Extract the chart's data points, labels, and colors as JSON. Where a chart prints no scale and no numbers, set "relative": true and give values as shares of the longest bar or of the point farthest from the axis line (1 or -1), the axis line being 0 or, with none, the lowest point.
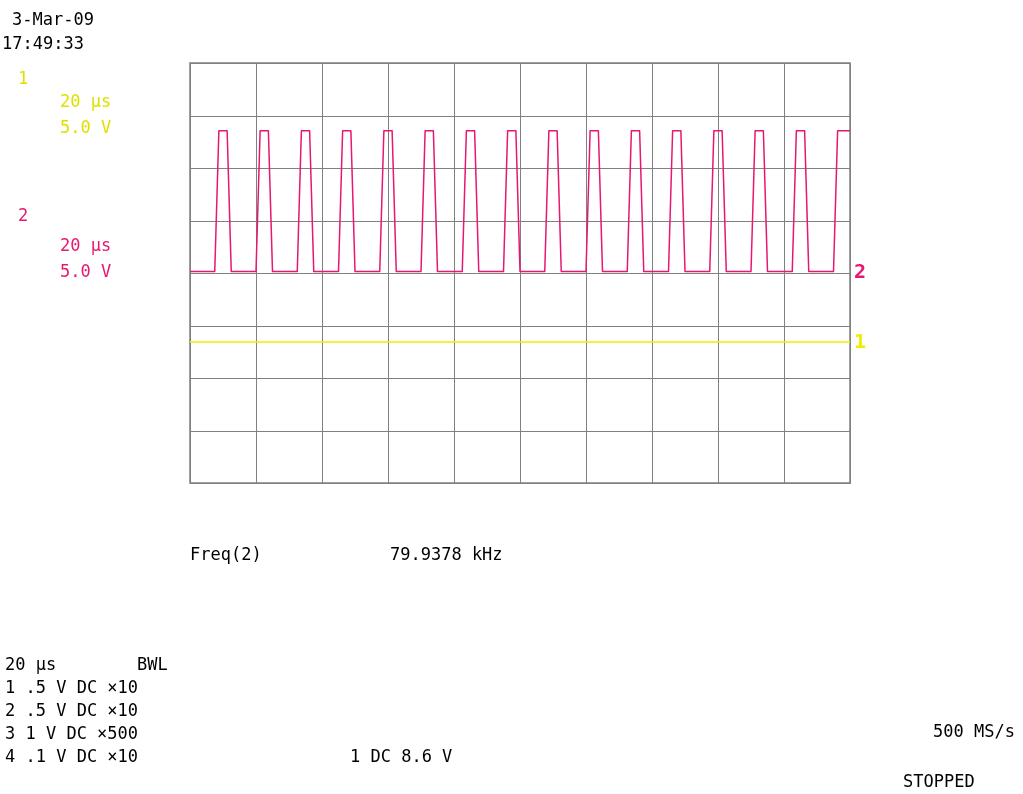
{
  "chart_data": {
    "type": "line",
    "relative": true,
    "grid": true,
    "marker": "none",
    "line_style": "solid",
    "categories": [
      null,
      null,
      null,
      null,
      null,
      null,
      null,
      null,
      null,
      null,
      null,
      null,
      null,
      null,
      null,
      null,
      null,
      null,
      null,
      null,
      null,
      null,
      null,
      null,
      null,
      null,
      null,
      null,
      null,
      null,
      null,
      null,
      null,
      null,
      null,
      null,
      null,
      null,
      null,
      null,
      null,
      null,
      null,
      null,
      null,
      null,
      null,
      null,
      null,
      null,
      null,
      null,
      null,
      null,
      null,
      null,
      null,
      null,
      null,
      null,
      null,
      null,
      null,
      null,
      null,
      null,
      null,
      null,
      null,
      null,
      null,
      null,
      null,
      null,
      null,
      null,
      null,
      null,
      null,
      null,
      null,
      null,
      null,
      null,
      null,
      null,
      null,
      null,
      null,
      null,
      null,
      null,
      null,
      null,
      null,
      null,
      null,
      null,
      null,
      null,
      null,
      null,
      null,
      null,
      null,
      null,
      null,
      null,
      null,
      null,
      null,
      null,
      null,
      null,
      null,
      null,
      null,
      null,
      null,
      null,
      null,
      null,
      null,
      null,
      null,
      null,
      null,
      null,
      null,
      null,
      null,
      null,
      null,
      null,
      null,
      null,
      null,
      null,
      null,
      null,
      null,
      null,
      null,
      null,
      null,
      null,
      null,
      null,
      null,
      null,
      null,
      null,
      null,
      null,
      null,
      null,
      null,
      null,
      null,
      null,
      null
    ],
    "series": [
      {
        "name": "2",
        "color": "#e8176f",
        "values": [
          0.6,
          0.6,
          0.6,
          0.6,
          0.6,
          0.6,
          0.6,
          1,
          1,
          1,
          0.6,
          0.6,
          0.6,
          0.6,
          0.6,
          0.6,
          0.6,
          1,
          1,
          1,
          0.6,
          0.6,
          0.6,
          0.6,
          0.6,
          0.6,
          0.6,
          1,
          1,
          1,
          0.6,
          0.6,
          0.6,
          0.6,
          0.6,
          0.6,
          0.6,
          1,
          1,
          1,
          0.6,
          0.6,
          0.6,
          0.6,
          0.6,
          0.6,
          0.6,
          1,
          1,
          1,
          0.6,
          0.6,
          0.6,
          0.6,
          0.6,
          0.6,
          0.6,
          1,
          1,
          1,
          0.6,
          0.6,
          0.6,
          0.6,
          0.6,
          0.6,
          0.6,
          1,
          1,
          1,
          0.6,
          0.6,
          0.6,
          0.6,
          0.6,
          0.6,
          0.6,
          1,
          1,
          1,
          0.6,
          0.6,
          0.6,
          0.6,
          0.6,
          0.6,
          0.6,
          1,
          1,
          1,
          0.6,
          0.6,
          0.6,
          0.6,
          0.6,
          0.6,
          0.6,
          1,
          1,
          1,
          0.6,
          0.6,
          0.6,
          0.6,
          0.6,
          0.6,
          0.6,
          1,
          1,
          1,
          0.6,
          0.6,
          0.6,
          0.6,
          0.6,
          0.6,
          0.6,
          1,
          1,
          1,
          0.6,
          0.6,
          0.6,
          0.6,
          0.6,
          0.6,
          0.6,
          1,
          1,
          1,
          0.6,
          0.6,
          0.6,
          0.6,
          0.6,
          0.6,
          0.6,
          1,
          1,
          1,
          0.6,
          0.6,
          0.6,
          0.6,
          0.6,
          0.6,
          0.6,
          1,
          1,
          1,
          0.6,
          0.6,
          0.6,
          0.6,
          0.6,
          0.6,
          0.6,
          1,
          1,
          1,
          1
        ]
      },
      {
        "name": "1",
        "color": "#eeee00",
        "values": [
          0.4,
          0.4,
          0.4,
          0.4,
          0.4,
          0.4,
          0.4,
          0.4,
          0.4,
          0.4,
          0.4,
          0.4,
          0.4,
          0.4,
          0.4,
          0.4,
          0.4,
          0.4,
          0.4,
          0.4,
          0.4,
          0.4,
          0.4,
          0.4,
          0.4,
          0.4,
          0.4,
          0.4,
          0.4,
          0.4,
          0.4,
          0.4,
          0.4,
          0.4,
          0.4,
          0.4,
          0.4,
          0.4,
          0.4,
          0.4,
          0.4,
          0.4,
          0.4,
          0.4,
          0.4,
          0.4,
          0.4,
          0.4,
          0.4,
          0.4,
          0.4,
          0.4,
          0.4,
          0.4,
          0.4,
          0.4,
          0.4,
          0.4,
          0.4,
          0.4,
          0.4,
          0.4,
          0.4,
          0.4,
          0.4,
          0.4,
          0.4,
          0.4,
          0.4,
          0.4,
          0.4,
          0.4,
          0.4,
          0.4,
          0.4,
          0.4,
          0.4,
          0.4,
          0.4,
          0.4,
          0.4,
          0.4,
          0.4,
          0.4,
          0.4,
          0.4,
          0.4,
          0.4,
          0.4,
          0.4,
          0.4,
          0.4,
          0.4,
          0.4,
          0.4,
          0.4,
          0.4,
          0.4,
          0.4,
          0.4,
          0.4,
          0.4,
          0.4,
          0.4,
          0.4,
          0.4,
          0.4,
          0.4,
          0.4,
          0.4,
          0.4,
          0.4,
          0.4,
          0.4,
          0.4,
          0.4,
          0.4,
          0.4,
          0.4,
          0.4,
          0.4,
          0.4,
          0.4,
          0.4,
          0.4,
          0.4,
          0.4,
          0.4,
          0.4,
          0.4,
          0.4,
          0.4,
          0.4,
          0.4,
          0.4,
          0.4,
          0.4,
          0.4,
          0.4,
          0.4,
          0.4,
          0.4,
          0.4,
          0.4,
          0.4,
          0.4,
          0.4,
          0.4,
          0.4,
          0.4,
          0.4,
          0.4,
          0.4,
          0.4,
          0.4,
          0.4,
          0.4,
          0.4,
          0.4,
          0.4,
          0.4
        ]
      }
    ],
    "annotations": [
      "3-Mar-09",
      "17:49:33",
      "1",
      "20 µs",
      "5.0 V",
      "2",
      "20 µs",
      "5.0 V",
      "Freq(2)",
      "79.9378 kHz",
      "20 µs",
      "BWL",
      "1 .5 V DC ×10",
      "2 .5 V DC ×10",
      "3 1 V DC ×500",
      "4 .1 V DC ×10",
      "1 DC 8.6 V",
      "500 MS/s",
      "STOPPED"
    ]
  }
}
